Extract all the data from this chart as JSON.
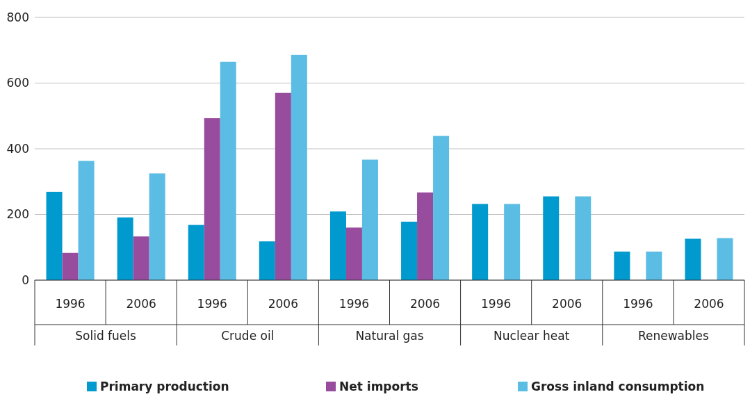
{
  "chart_data": {
    "type": "bar",
    "categories": [
      "1996",
      "2006",
      "1996",
      "2006",
      "1996",
      "2006",
      "1996",
      "2006",
      "1996",
      "2006"
    ],
    "annotations": [
      "Solid fuels",
      "Crude oil",
      "Natural gas",
      "Nuclear heat",
      "Renewables"
    ],
    "series": [
      {
        "name": "Primary production",
        "color": "#009ace",
        "values": [
          269,
          191,
          168,
          118,
          209,
          178,
          232,
          255,
          87,
          126
        ]
      },
      {
        "name": "Net imports",
        "color": "#984c9e",
        "values": [
          83,
          133,
          493,
          570,
          160,
          267,
          null,
          null,
          null,
          null
        ]
      },
      {
        "name": "Gross inland consumption",
        "color": "#5bbde4",
        "values": [
          363,
          325,
          665,
          686,
          367,
          439,
          232,
          255,
          87,
          128
        ]
      }
    ],
    "ylim": [
      0,
      800
    ],
    "yticks": [
      0,
      200,
      400,
      600,
      800
    ],
    "grid": "y",
    "legend": "bottom"
  }
}
